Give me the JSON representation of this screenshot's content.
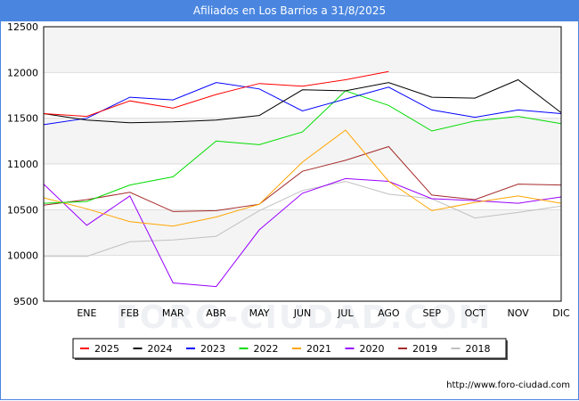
{
  "title": "Afiliados en Los Barrios a 31/8/2025",
  "source": "http://www.foro-ciudad.com",
  "watermark": "FORO-CIUDAD.COM",
  "chart_data": {
    "type": "line",
    "title": "Afiliados en Los Barrios a 31/8/2025",
    "categories": [
      "",
      "ENE",
      "FEB",
      "MAR",
      "ABR",
      "MAY",
      "JUN",
      "JUL",
      "AGO",
      "SEP",
      "OCT",
      "NOV",
      "DIC"
    ],
    "ylim": [
      9500,
      12500
    ],
    "yticks": [
      9500,
      10000,
      10500,
      11000,
      11500,
      12000,
      12500
    ],
    "grid": true,
    "legend_position": "bottom",
    "series": [
      {
        "name": "2025",
        "color": "#ff0000",
        "values": [
          11550,
          11520,
          11690,
          11610,
          11760,
          11880,
          11850,
          11920,
          12010,
          null,
          null,
          null,
          null
        ]
      },
      {
        "name": "2024",
        "color": "#000000",
        "values": [
          11550,
          11480,
          11450,
          11460,
          11480,
          11530,
          11810,
          11800,
          11890,
          11730,
          11720,
          11920,
          11560
        ]
      },
      {
        "name": "2023",
        "color": "#0000ff",
        "values": [
          11430,
          11500,
          11730,
          11700,
          11890,
          11820,
          11580,
          11710,
          11840,
          11590,
          11510,
          11590,
          11550
        ]
      },
      {
        "name": "2022",
        "color": "#00dd00",
        "values": [
          10570,
          10590,
          10770,
          10860,
          11250,
          11210,
          11350,
          11800,
          11640,
          11360,
          11470,
          11520,
          11440
        ]
      },
      {
        "name": "2021",
        "color": "#ffa500",
        "values": [
          10630,
          10510,
          10370,
          10320,
          10420,
          10560,
          11020,
          11370,
          10810,
          10490,
          10580,
          10650,
          10570
        ]
      },
      {
        "name": "2020",
        "color": "#9900ff",
        "values": [
          10780,
          10330,
          10650,
          9700,
          9660,
          10280,
          10680,
          10840,
          10810,
          10620,
          10600,
          10570,
          10640
        ]
      },
      {
        "name": "2019",
        "color": "#a52a2a",
        "values": [
          10550,
          10610,
          10690,
          10480,
          10490,
          10560,
          10920,
          11040,
          11190,
          10660,
          10610,
          10780,
          10770
        ]
      },
      {
        "name": "2018",
        "color": "#c0c0c0",
        "values": [
          9990,
          9990,
          10150,
          10170,
          10210,
          10490,
          10710,
          10810,
          10670,
          10620,
          10410,
          10470,
          10540
        ]
      }
    ]
  }
}
